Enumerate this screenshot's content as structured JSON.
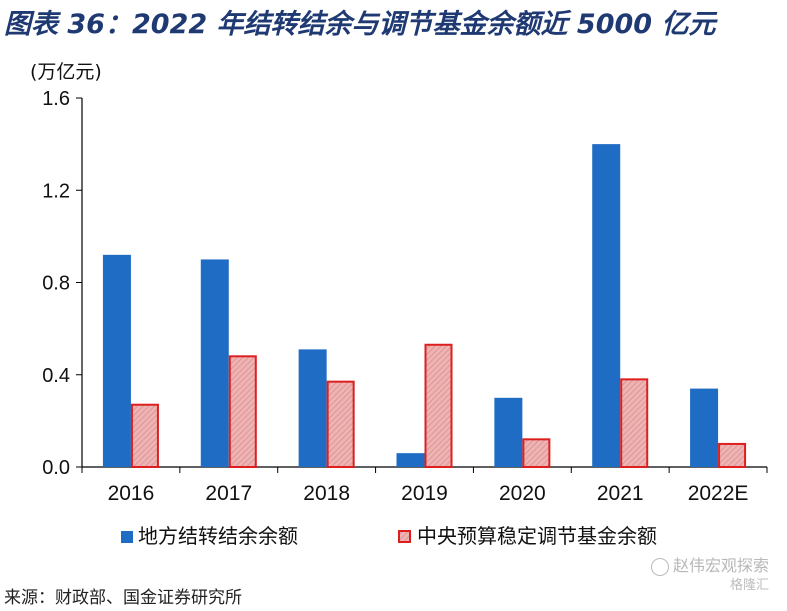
{
  "title": "图表 36：2022 年结转结余与调节基金余额近 5000 亿元",
  "source": "来源：财政部、国金证券研究所",
  "watermark": {
    "name": "赵伟宏观探索",
    "sub": "格隆汇"
  },
  "colors": {
    "series1": "#1f6cc4",
    "series2_fill": "#e8a3a3",
    "series2_stroke": "#dd1f1f"
  },
  "chart_data": {
    "type": "bar",
    "unit_label": "(万亿元)",
    "categories": [
      "2016",
      "2017",
      "2018",
      "2019",
      "2020",
      "2021",
      "2022E"
    ],
    "series": [
      {
        "name": "地方结转结余余额",
        "values": [
          0.92,
          0.9,
          0.51,
          0.06,
          0.3,
          1.4,
          0.34
        ]
      },
      {
        "name": "中央预算稳定调节基金余额",
        "values": [
          0.27,
          0.48,
          0.37,
          0.53,
          0.12,
          0.38,
          0.1
        ]
      }
    ],
    "ylim": [
      0,
      1.6
    ],
    "yticks": [
      "0.0",
      "0.4",
      "0.8",
      "1.2",
      "1.6"
    ],
    "legend_position": "bottom",
    "grid": false
  }
}
